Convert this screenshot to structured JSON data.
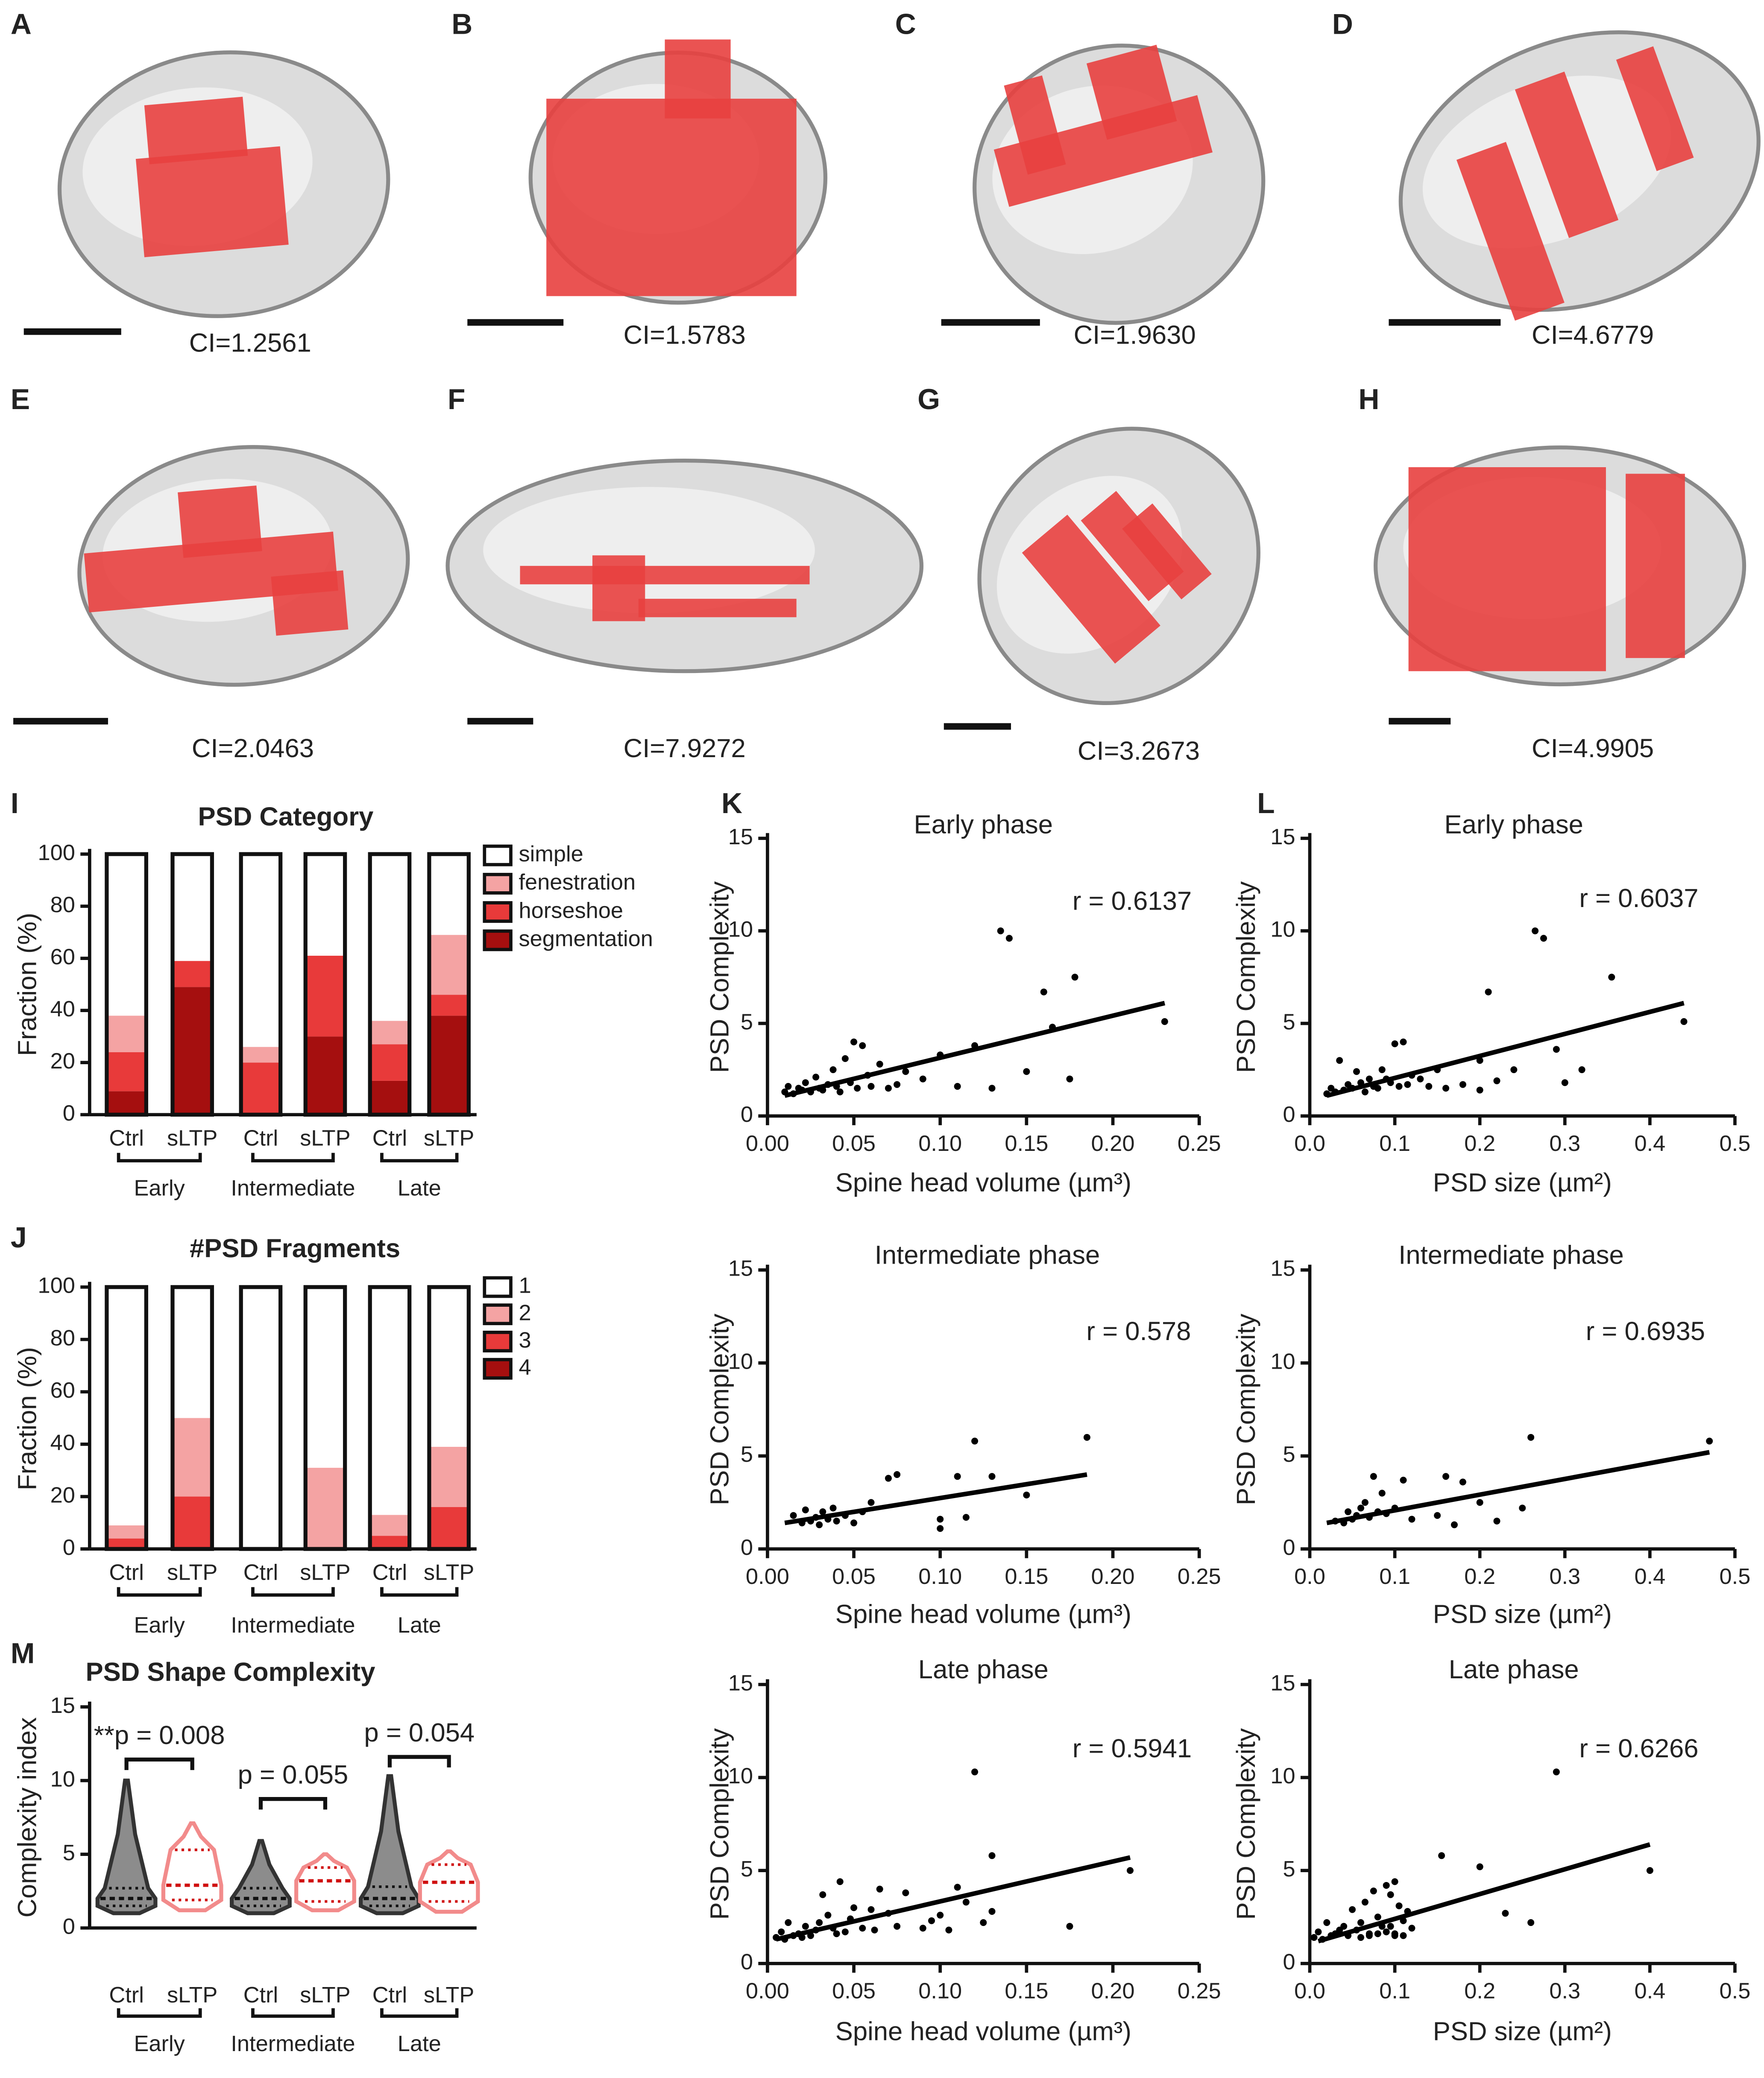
{
  "renders": [
    {
      "label": "A",
      "caption": "CI=1.2561"
    },
    {
      "label": "B",
      "caption": "CI=1.5783"
    },
    {
      "label": "C",
      "caption": "CI=1.9630"
    },
    {
      "label": "D",
      "caption": "CI=4.6779"
    },
    {
      "label": "E",
      "caption": "CI=2.0463"
    },
    {
      "label": "F",
      "caption": "CI=7.9272"
    },
    {
      "label": "G",
      "caption": "CI=3.2673"
    },
    {
      "label": "H",
      "caption": "CI=4.9905"
    }
  ],
  "chart_data": [
    {
      "type": "bar",
      "panel": "I",
      "title": "PSD Category",
      "ylabel": "Fraction (%)",
      "stacked": true,
      "categories": [
        "Ctrl",
        "sLTP",
        "Ctrl",
        "sLTP",
        "Ctrl",
        "sLTP"
      ],
      "groups": [
        "Early",
        "Intermediate",
        "Late"
      ],
      "series": [
        {
          "name": "simple",
          "color": "#ffffff",
          "values": [
            62,
            41,
            74,
            39,
            64,
            31
          ]
        },
        {
          "name": "fenestration",
          "color": "#f4a3a3",
          "values": [
            14,
            0,
            6,
            0,
            9,
            23
          ]
        },
        {
          "name": "horseshoe",
          "color": "#e83a3a",
          "values": [
            15,
            10,
            20,
            31,
            14,
            8
          ]
        },
        {
          "name": "segmentation",
          "color": "#a50f0f",
          "values": [
            9,
            49,
            0,
            30,
            13,
            38
          ]
        }
      ],
      "ylim": [
        0,
        100
      ],
      "yticks": [
        0,
        20,
        40,
        60,
        80,
        100
      ]
    },
    {
      "type": "bar",
      "panel": "J",
      "title": "#PSD Fragments",
      "ylabel": "Fraction (%)",
      "stacked": true,
      "categories": [
        "Ctrl",
        "sLTP",
        "Ctrl",
        "sLTP",
        "Ctrl",
        "sLTP"
      ],
      "groups": [
        "Early",
        "Intermediate",
        "Late"
      ],
      "series": [
        {
          "name": "1",
          "color": "#ffffff",
          "values": [
            91,
            50,
            100,
            69,
            87,
            61
          ]
        },
        {
          "name": "2",
          "color": "#f4a3a3",
          "values": [
            5,
            30,
            0,
            31,
            8,
            23
          ]
        },
        {
          "name": "3",
          "color": "#e83a3a",
          "values": [
            4,
            20,
            0,
            0,
            5,
            16
          ]
        },
        {
          "name": "4",
          "color": "#a50f0f",
          "values": [
            0,
            0,
            0,
            0,
            0,
            0
          ]
        }
      ],
      "ylim": [
        0,
        100
      ],
      "yticks": [
        0,
        20,
        40,
        60,
        80,
        100
      ]
    },
    {
      "type": "violin",
      "panel": "M",
      "title": "PSD Shape Complexity",
      "ylabel": "Complexity index",
      "categories": [
        "Ctrl",
        "sLTP",
        "Ctrl",
        "sLTP",
        "Ctrl",
        "sLTP"
      ],
      "groups": [
        "Early",
        "Intermediate",
        "Late"
      ],
      "color": [
        "#8c8c8c",
        "#f28b8b"
      ],
      "min": [
        1,
        1.2,
        1,
        1.2,
        1,
        1.1
      ],
      "q1": [
        1.5,
        1.9,
        1.5,
        1.8,
        1.5,
        1.8
      ],
      "median": [
        2,
        2.9,
        2,
        3.2,
        2,
        3.1
      ],
      "q3": [
        2.7,
        5.3,
        2.7,
        4.1,
        2.8,
        4.3
      ],
      "max": [
        10,
        7.1,
        5.9,
        5,
        10.3,
        5.2
      ],
      "annotations": [
        "**p = 0.008",
        "p = 0.055",
        "p = 0.054"
      ],
      "ylim": [
        0,
        15
      ],
      "yticks": [
        0,
        5,
        10,
        15
      ]
    },
    {
      "type": "scatter",
      "panel": "K",
      "title": "Early phase",
      "xlabel": "Spine head volume (µm³)",
      "ylabel": "PSD Complexity",
      "annotation": "r = 0.6137",
      "color": "#000000",
      "x": [
        0.01,
        0.012,
        0.015,
        0.018,
        0.02,
        0.022,
        0.025,
        0.028,
        0.03,
        0.032,
        0.035,
        0.038,
        0.04,
        0.042,
        0.045,
        0.048,
        0.05,
        0.052,
        0.055,
        0.058,
        0.06,
        0.065,
        0.07,
        0.075,
        0.08,
        0.09,
        0.1,
        0.11,
        0.12,
        0.13,
        0.135,
        0.14,
        0.15,
        0.16,
        0.165,
        0.175,
        0.178,
        0.23
      ],
      "values": [
        1.3,
        1.6,
        1.2,
        1.5,
        1.4,
        1.8,
        1.3,
        2.1,
        1.5,
        1.4,
        1.7,
        2.5,
        1.6,
        1.3,
        3.1,
        1.8,
        4.0,
        1.5,
        3.8,
        2.2,
        1.6,
        2.8,
        1.5,
        1.7,
        2.4,
        2.0,
        3.3,
        1.6,
        3.8,
        1.5,
        10.0,
        9.6,
        2.4,
        6.7,
        4.8,
        2.0,
        7.5,
        5.1
      ],
      "fit": {
        "x": [
          0.01,
          0.23
        ],
        "y": [
          1.1,
          6.1
        ]
      },
      "xlim": [
        0,
        0.25
      ],
      "xticks": [
        {
          "value": 0,
          "label": "0.00"
        },
        0.05,
        {
          "value": 0.1,
          "label": "0.10"
        },
        0.15,
        {
          "value": 0.2,
          "label": "0.20"
        },
        0.25
      ],
      "ylim": [
        0,
        15
      ],
      "yticks": [
        0,
        5,
        10,
        15
      ]
    },
    {
      "type": "scatter",
      "title": "Intermediate phase",
      "xlabel": "Spine head volume (µm³)",
      "ylabel": "PSD Complexity",
      "annotation": "r = 0.578",
      "color": "#000000",
      "x": [
        0.015,
        0.02,
        0.022,
        0.025,
        0.028,
        0.03,
        0.032,
        0.035,
        0.038,
        0.04,
        0.045,
        0.05,
        0.055,
        0.06,
        0.07,
        0.075,
        0.1,
        0.1,
        0.11,
        0.115,
        0.12,
        0.13,
        0.15,
        0.185
      ],
      "values": [
        1.8,
        1.4,
        2.1,
        1.5,
        1.7,
        1.3,
        2.0,
        1.6,
        2.2,
        1.5,
        1.8,
        1.4,
        2.0,
        2.5,
        3.8,
        4.0,
        1.6,
        1.1,
        3.9,
        1.7,
        5.8,
        3.9,
        2.9,
        6.0
      ],
      "fit": {
        "x": [
          0.01,
          0.185
        ],
        "y": [
          1.4,
          4.0
        ]
      },
      "xlim": [
        0,
        0.25
      ],
      "xticks": [
        {
          "value": 0,
          "label": "0.00"
        },
        0.05,
        {
          "value": 0.1,
          "label": "0.10"
        },
        0.15,
        {
          "value": 0.2,
          "label": "0.20"
        },
        0.25
      ],
      "ylim": [
        0,
        15
      ],
      "yticks": [
        0,
        5,
        10,
        15
      ]
    },
    {
      "type": "scatter",
      "title": "Late phase",
      "xlabel": "Spine head volume (µm³)",
      "ylabel": "PSD Complexity",
      "annotation": "r = 0.5941",
      "color": "#000000",
      "x": [
        0.005,
        0.008,
        0.01,
        0.012,
        0.015,
        0.018,
        0.02,
        0.022,
        0.025,
        0.028,
        0.03,
        0.032,
        0.035,
        0.038,
        0.04,
        0.042,
        0.045,
        0.048,
        0.05,
        0.055,
        0.06,
        0.062,
        0.065,
        0.07,
        0.075,
        0.08,
        0.09,
        0.095,
        0.1,
        0.105,
        0.11,
        0.115,
        0.12,
        0.125,
        0.13,
        0.13,
        0.175,
        0.21
      ],
      "values": [
        1.4,
        1.7,
        1.3,
        2.2,
        1.5,
        1.6,
        1.4,
        2.0,
        1.5,
        1.8,
        2.2,
        3.7,
        2.6,
        1.9,
        1.6,
        4.4,
        1.7,
        2.4,
        3.0,
        1.9,
        2.9,
        1.8,
        4.0,
        2.7,
        2.0,
        3.8,
        1.9,
        2.3,
        2.6,
        1.8,
        4.1,
        3.3,
        10.3,
        2.2,
        5.8,
        2.8,
        2.0,
        5.0
      ],
      "fit": {
        "x": [
          0.005,
          0.21
        ],
        "y": [
          1.3,
          5.7
        ]
      },
      "xlim": [
        0,
        0.25
      ],
      "xticks": [
        {
          "value": 0,
          "label": "0.00"
        },
        0.05,
        {
          "value": 0.1,
          "label": "0.10"
        },
        0.15,
        {
          "value": 0.2,
          "label": "0.20"
        },
        0.25
      ],
      "ylim": [
        0,
        15
      ],
      "yticks": [
        0,
        5,
        10,
        15
      ]
    },
    {
      "type": "scatter",
      "panel": "L",
      "title": "Early phase",
      "xlabel": "PSD size (µm²)",
      "ylabel": "PSD Complexity",
      "annotation": "r = 0.6037",
      "color": "#000000",
      "x": [
        0.02,
        0.025,
        0.03,
        0.035,
        0.04,
        0.045,
        0.05,
        0.055,
        0.06,
        0.065,
        0.07,
        0.075,
        0.08,
        0.085,
        0.09,
        0.095,
        0.1,
        0.105,
        0.11,
        0.115,
        0.12,
        0.13,
        0.14,
        0.15,
        0.16,
        0.18,
        0.2,
        0.21,
        0.22,
        0.24,
        0.265,
        0.275,
        0.29,
        0.3,
        0.32,
        0.355,
        0.2,
        0.44
      ],
      "values": [
        1.2,
        1.5,
        1.3,
        3.0,
        1.4,
        1.7,
        1.5,
        2.4,
        1.8,
        1.3,
        2.0,
        1.6,
        1.5,
        2.5,
        2.0,
        1.8,
        3.9,
        1.6,
        4.0,
        1.7,
        2.2,
        2.0,
        1.6,
        2.5,
        1.5,
        1.7,
        1.4,
        6.7,
        1.9,
        2.5,
        10.0,
        9.6,
        3.6,
        1.8,
        2.5,
        7.5,
        3.0,
        5.1
      ],
      "fit": {
        "x": [
          0.02,
          0.44
        ],
        "y": [
          1.1,
          6.1
        ]
      },
      "xlim": [
        0,
        0.5
      ],
      "xticks": [
        {
          "value": 0,
          "label": "0.0"
        },
        0.1,
        0.2,
        0.3,
        0.4,
        0.5
      ],
      "ylim": [
        0,
        15
      ],
      "yticks": [
        0,
        5,
        10,
        15
      ]
    },
    {
      "type": "scatter",
      "title": "Intermediate phase",
      "xlabel": "PSD size (µm²)",
      "ylabel": "PSD Complexity",
      "annotation": "r = 0.6935",
      "color": "#000000",
      "x": [
        0.03,
        0.04,
        0.045,
        0.05,
        0.055,
        0.06,
        0.065,
        0.07,
        0.075,
        0.08,
        0.085,
        0.09,
        0.1,
        0.11,
        0.12,
        0.15,
        0.16,
        0.17,
        0.18,
        0.2,
        0.22,
        0.25,
        0.26,
        0.47
      ],
      "values": [
        1.5,
        1.4,
        2.0,
        1.6,
        1.8,
        2.2,
        2.5,
        1.7,
        3.9,
        2.0,
        3.0,
        1.9,
        2.2,
        3.7,
        1.6,
        1.8,
        3.9,
        1.3,
        3.6,
        2.5,
        1.5,
        2.2,
        6.0,
        5.8
      ],
      "fit": {
        "x": [
          0.02,
          0.47
        ],
        "y": [
          1.4,
          5.2
        ]
      },
      "xlim": [
        0,
        0.5
      ],
      "xticks": [
        {
          "value": 0,
          "label": "0.0"
        },
        0.1,
        0.2,
        0.3,
        0.4,
        0.5
      ],
      "ylim": [
        0,
        15
      ],
      "yticks": [
        0,
        5,
        10,
        15
      ]
    },
    {
      "type": "scatter",
      "title": "Late phase",
      "xlabel": "PSD size (µm²)",
      "ylabel": "PSD Complexity",
      "annotation": "r = 0.6266",
      "color": "#000000",
      "x": [
        0.005,
        0.01,
        0.015,
        0.02,
        0.025,
        0.03,
        0.035,
        0.04,
        0.045,
        0.05,
        0.055,
        0.06,
        0.065,
        0.07,
        0.075,
        0.08,
        0.085,
        0.09,
        0.095,
        0.1,
        0.1,
        0.105,
        0.11,
        0.11,
        0.115,
        0.12,
        0.06,
        0.07,
        0.08,
        0.09,
        0.095,
        0.1,
        0.155,
        0.2,
        0.23,
        0.26,
        0.29,
        0.4
      ],
      "values": [
        1.4,
        1.7,
        1.3,
        2.2,
        1.5,
        1.6,
        1.8,
        2.0,
        1.5,
        2.9,
        1.8,
        2.2,
        3.3,
        1.6,
        3.9,
        2.5,
        2.0,
        4.2,
        3.7,
        4.4,
        1.6,
        3.1,
        2.3,
        1.5,
        2.8,
        1.9,
        1.4,
        1.5,
        1.6,
        1.7,
        2.0,
        1.5,
        5.8,
        5.2,
        2.7,
        2.2,
        10.3,
        5.0
      ],
      "fit": {
        "x": [
          0.01,
          0.4
        ],
        "y": [
          1.2,
          6.4
        ]
      },
      "xlim": [
        0,
        0.5
      ],
      "xticks": [
        {
          "value": 0,
          "label": "0.0"
        },
        0.1,
        0.2,
        0.3,
        0.4,
        0.5
      ],
      "ylim": [
        0,
        15
      ],
      "yticks": [
        0,
        5,
        10,
        15
      ]
    }
  ]
}
